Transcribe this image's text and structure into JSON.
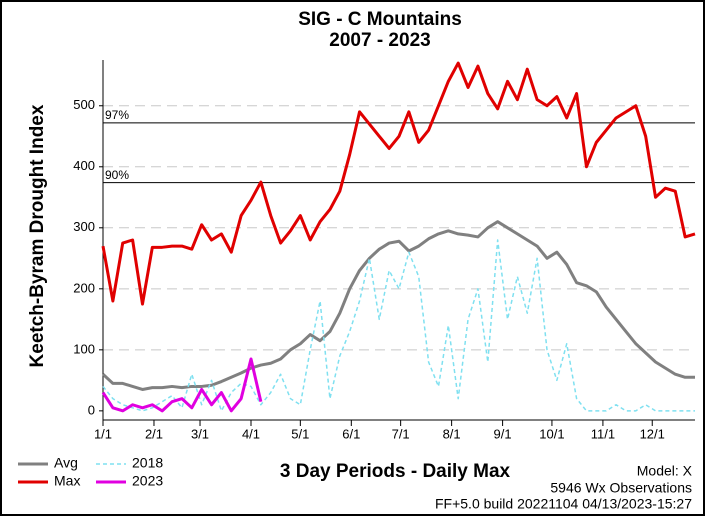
{
  "chart_data": {
    "type": "line",
    "title": "SIG - C Mountains",
    "subtitle": "2007 - 2023",
    "ylabel": "Keetch-Byram Drought Index",
    "xlabel": "3 Day Periods - Daily Max",
    "annotations": [
      "Model: X",
      "5946 Wx Observations",
      "FF+5.0 build 20221104 04/13/2023-15:27"
    ],
    "hlines": [
      {
        "value": 472,
        "label": "97%"
      },
      {
        "value": 374,
        "label": "90%"
      }
    ],
    "x": [
      1,
      7,
      13,
      19,
      25,
      31,
      37,
      43,
      49,
      55,
      61,
      67,
      73,
      79,
      85,
      91,
      97,
      103,
      109,
      115,
      121,
      127,
      133,
      139,
      145,
      151,
      157,
      163,
      169,
      175,
      181,
      187,
      193,
      199,
      205,
      211,
      217,
      223,
      229,
      235,
      241,
      247,
      253,
      259,
      265,
      271,
      277,
      283,
      289,
      295,
      301,
      307,
      313,
      319,
      325,
      331,
      337,
      343,
      349,
      355,
      361
    ],
    "xlim": [
      1,
      361
    ],
    "xticks": [
      {
        "value": 1,
        "label": "1/1"
      },
      {
        "value": 32,
        "label": "2/1"
      },
      {
        "value": 60,
        "label": "3/1"
      },
      {
        "value": 91,
        "label": "4/1"
      },
      {
        "value": 121,
        "label": "5/1"
      },
      {
        "value": 152,
        "label": "6/1"
      },
      {
        "value": 182,
        "label": "7/1"
      },
      {
        "value": 213,
        "label": "8/1"
      },
      {
        "value": 244,
        "label": "9/1"
      },
      {
        "value": 274,
        "label": "10/1"
      },
      {
        "value": 305,
        "label": "11/1"
      },
      {
        "value": 335,
        "label": "12/1"
      }
    ],
    "ylim": [
      -15,
      575
    ],
    "yticks": [
      0,
      100,
      200,
      300,
      400,
      500
    ],
    "grid": true,
    "series": [
      {
        "name": "Avg",
        "color": "#808080",
        "dash": false,
        "values": [
          60,
          45,
          45,
          40,
          35,
          38,
          38,
          40,
          38,
          40,
          40,
          42,
          48,
          55,
          62,
          70,
          75,
          78,
          85,
          100,
          110,
          125,
          115,
          130,
          160,
          200,
          230,
          250,
          265,
          275,
          278,
          262,
          270,
          282,
          290,
          295,
          290,
          288,
          285,
          300,
          310,
          300,
          290,
          280,
          270,
          250,
          260,
          240,
          210,
          205,
          195,
          170,
          150,
          130,
          110,
          95,
          80,
          70,
          60,
          55,
          55
        ]
      },
      {
        "name": "Max",
        "color": "#e00000",
        "dash": false,
        "values": [
          270,
          180,
          275,
          280,
          175,
          268,
          268,
          270,
          270,
          265,
          305,
          280,
          290,
          260,
          320,
          345,
          375,
          320,
          275,
          295,
          320,
          280,
          310,
          330,
          360,
          420,
          490,
          470,
          450,
          430,
          450,
          490,
          440,
          460,
          500,
          540,
          570,
          530,
          565,
          520,
          495,
          540,
          510,
          560,
          510,
          500,
          515,
          480,
          520,
          400,
          440,
          460,
          480,
          490,
          500,
          450,
          350,
          365,
          360,
          285,
          290
        ]
      },
      {
        "name": "2018",
        "color": "#7fe0f0",
        "dash": true,
        "values": [
          40,
          20,
          10,
          5,
          0,
          5,
          15,
          25,
          5,
          60,
          10,
          50,
          0,
          30,
          45,
          40,
          10,
          30,
          60,
          20,
          10,
          100,
          180,
          20,
          90,
          130,
          180,
          250,
          150,
          230,
          200,
          260,
          220,
          80,
          40,
          140,
          20,
          150,
          200,
          80,
          280,
          150,
          220,
          160,
          250,
          100,
          50,
          110,
          20,
          0,
          0,
          0,
          10,
          0,
          0,
          10,
          0,
          0,
          0,
          0,
          0
        ]
      },
      {
        "name": "2023",
        "color": "#e000e0",
        "dash": false,
        "values": [
          30,
          5,
          0,
          10,
          5,
          10,
          0,
          15,
          20,
          5,
          35,
          10,
          30,
          0,
          20,
          85,
          15,
          null,
          null,
          null,
          null,
          null,
          null,
          null,
          null,
          null,
          null,
          null,
          null,
          null,
          null,
          null,
          null,
          null,
          null,
          null,
          null,
          null,
          null,
          null,
          null,
          null,
          null,
          null,
          null,
          null,
          null,
          null,
          null,
          null,
          null,
          null,
          null,
          null,
          null,
          null,
          null,
          null,
          null,
          null,
          null
        ]
      }
    ]
  }
}
